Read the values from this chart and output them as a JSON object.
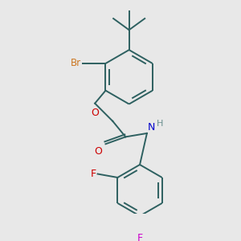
{
  "bg_color": "#e8e8e8",
  "bond_color": "#2d6060",
  "bond_width": 1.4,
  "atom_colors": {
    "Br": "#cc7722",
    "O": "#cc0000",
    "N": "#0000cc",
    "H": "#6a9090",
    "F_ortho": "#cc0000",
    "F_para": "#cc00cc"
  }
}
